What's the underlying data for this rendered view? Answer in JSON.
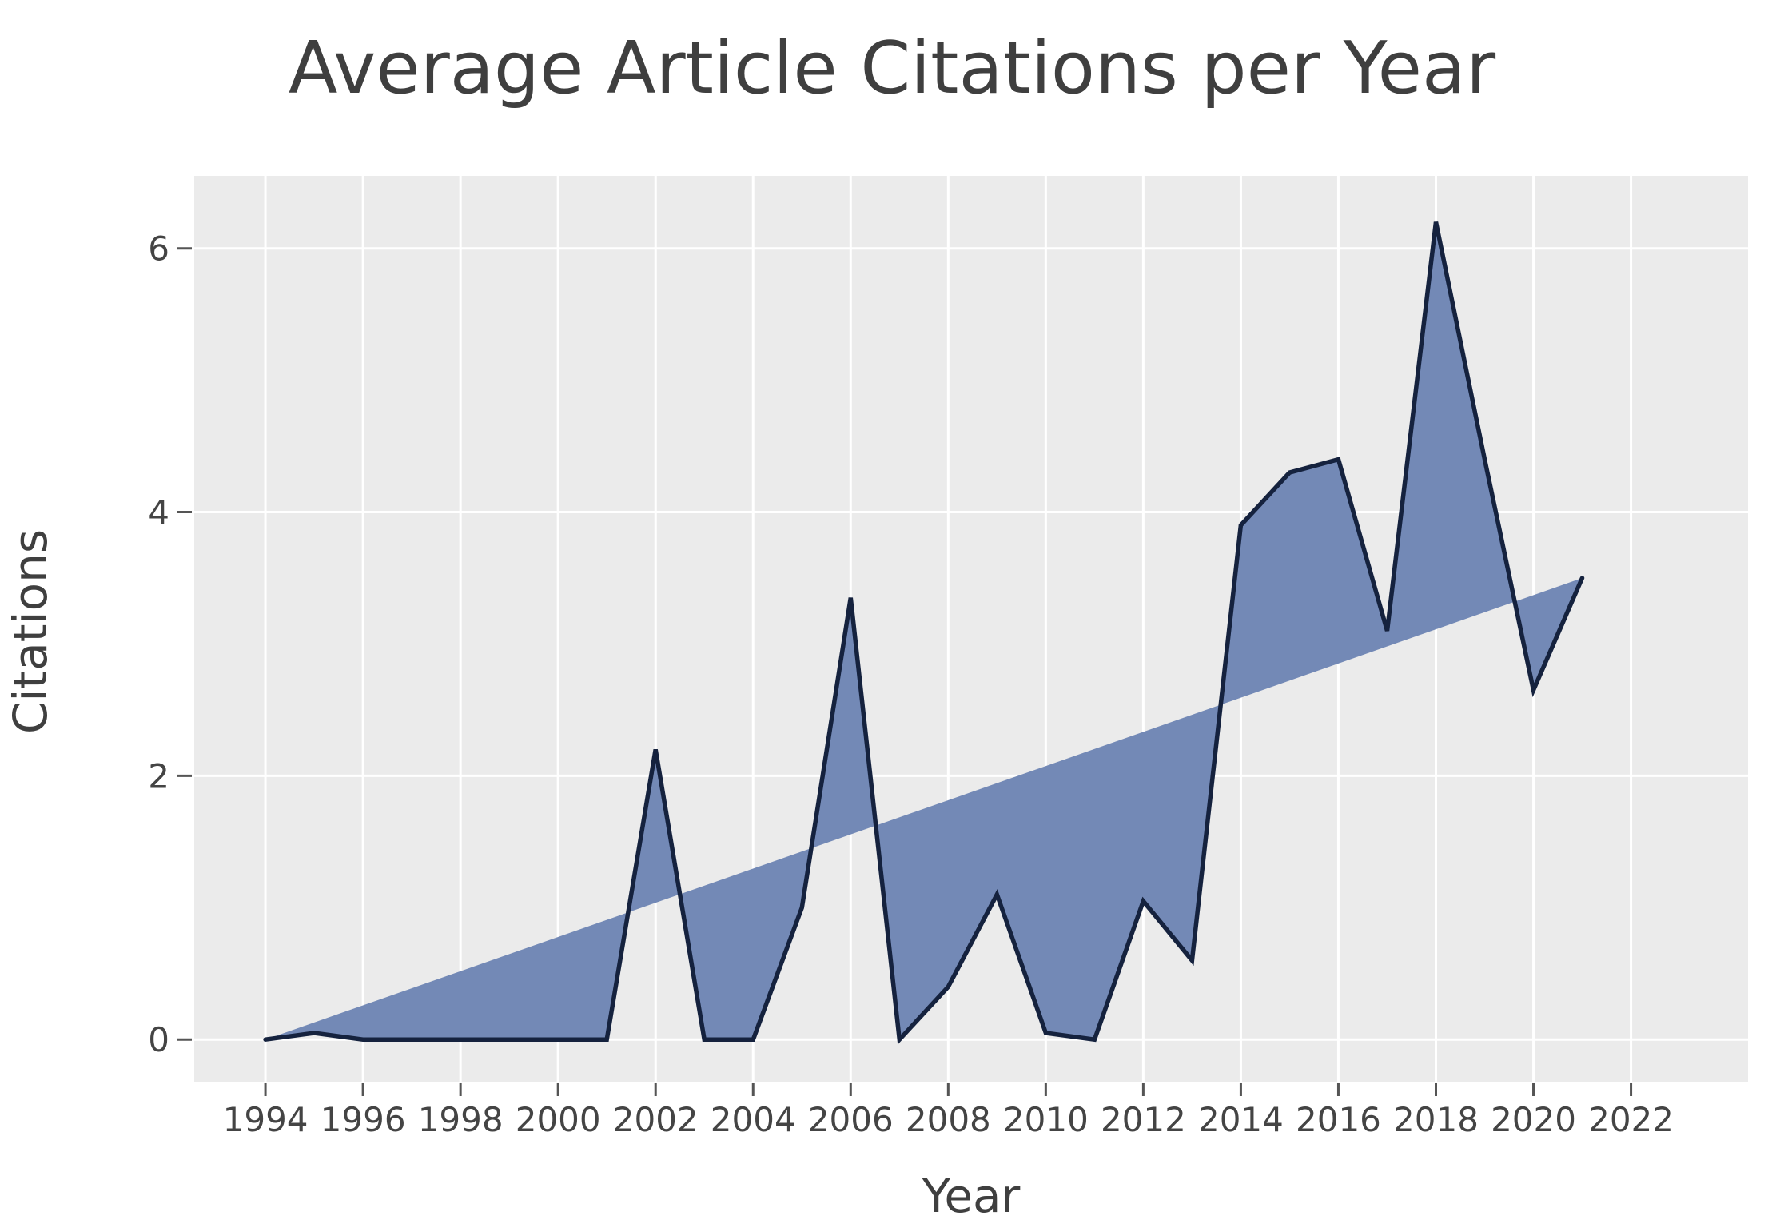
{
  "chart_data": {
    "type": "area",
    "title": "Average Article Citations per Year",
    "xlabel": "Year",
    "ylabel": "Citations",
    "x": [
      1994,
      1995,
      1996,
      1997,
      1998,
      1999,
      2000,
      2001,
      2002,
      2003,
      2004,
      2005,
      2006,
      2007,
      2008,
      2009,
      2010,
      2011,
      2012,
      2013,
      2014,
      2015,
      2016,
      2017,
      2018,
      2019,
      2020,
      2021
    ],
    "series": [
      {
        "name": "citations",
        "style": "jagged dark line, vertex of area fill",
        "values": [
          0,
          0.05,
          0,
          0,
          0,
          0,
          0,
          0,
          2.2,
          0,
          0,
          1.0,
          3.35,
          0,
          0.4,
          1.1,
          0.05,
          0,
          1.05,
          0.6,
          3.9,
          4.3,
          4.4,
          3.1,
          6.2,
          4.4,
          2.65,
          3.5
        ]
      },
      {
        "name": "trend",
        "style": "straight unstroked edge of area fill",
        "x": [
          1994,
          2021
        ],
        "values": [
          0,
          3.5
        ]
      }
    ],
    "fill_between": "area filled between citations series and straight trend line",
    "x_ticks": [
      1994,
      1996,
      1998,
      2000,
      2002,
      2004,
      2006,
      2008,
      2010,
      2012,
      2014,
      2016,
      2018,
      2020,
      2022
    ],
    "y_ticks": [
      0,
      2,
      4,
      6
    ],
    "xlim": [
      1992.54,
      2024.4
    ],
    "ylim": [
      -0.32,
      6.55
    ],
    "grid": "on",
    "legend": "none",
    "colors": {
      "area_fill": "#7389b6",
      "data_line": "#15223e",
      "panel_background": "#ebebeb",
      "gridline": "#ffffff",
      "text": "#3f3f3f",
      "tick_mark": "#555555"
    }
  }
}
